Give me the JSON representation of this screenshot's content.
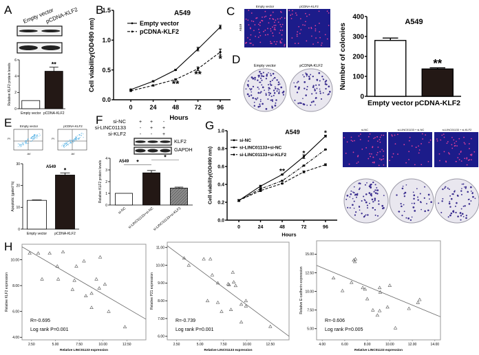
{
  "panel_labels": {
    "A": "A",
    "B": "B",
    "C": "C",
    "D": "D",
    "E": "E",
    "F": "F",
    "G": "G",
    "H": "H"
  },
  "panel_a": {
    "lanes": [
      "Empty vector",
      "pCDNA-KLF2"
    ]
  },
  "panel_c": {
    "row_label": "A549",
    "columns": [
      "Empty vector",
      "pCDNA-KLF2"
    ]
  },
  "panel_d": {
    "columns": [
      "Empty vector",
      "pCDNA-KLF2"
    ]
  },
  "panel_e": {
    "flow_plots": [
      "Empty vector",
      "pCDNA-KLF2"
    ],
    "x_axis": "AV",
    "y_axis": "PI"
  },
  "panel_f": {
    "conditions": [
      {
        "label": "si-NC",
        "signs": [
          "+",
          "+",
          "-"
        ]
      },
      {
        "label": "si-LINC01133",
        "signs": [
          "-",
          "+",
          "+"
        ]
      },
      {
        "label": "si-KLF2",
        "signs": [
          "-",
          "-",
          "+"
        ]
      }
    ],
    "blots": [
      "KLF2",
      "GAPDH"
    ]
  },
  "panel_g_images": {
    "columns": [
      "si-NC",
      "si-LINC01133 + si-NC",
      "si-LINC01133 + si-KLF2"
    ]
  },
  "colors": {
    "dark_bar": "#231815",
    "white_bar": "#ffffff",
    "hatch_bar": "#8c8c8c",
    "fluor_bg": "#1c1c8a",
    "fluor_dot": "#e0409a",
    "colony": "#3b2e8f"
  },
  "chart_data": [
    {
      "id": "a-klf2-bars",
      "type": "bar",
      "title": "",
      "ylabel": "Relative KLF2 protein levels",
      "categories": [
        "Empty vector",
        "pCDNA-KLF2"
      ],
      "values": [
        1.0,
        4.6
      ],
      "errors": [
        0,
        0.5
      ],
      "fills": [
        "white",
        "dark"
      ],
      "sig": [
        "",
        "**"
      ],
      "ylim": [
        0,
        6
      ],
      "yticks": [
        0,
        2,
        4,
        6
      ]
    },
    {
      "id": "b-viability",
      "type": "line",
      "title": "A549",
      "xlabel": "Hours",
      "ylabel": "Cell viability(OD490 nm)",
      "x": [
        0,
        24,
        48,
        72,
        96
      ],
      "xticks": [
        0,
        24,
        48,
        72,
        96
      ],
      "xlim": [
        -18.5,
        107
      ],
      "ylim": [
        0,
        1.5
      ],
      "yticks": [
        "0.0",
        "0.5",
        "1.0",
        "1.5"
      ],
      "series": [
        {
          "name": "Empty vector",
          "values": [
            0.17,
            0.31,
            0.5,
            0.85,
            1.22
          ],
          "errors": [
            0.01,
            0.01,
            0.01,
            0.03,
            0.03
          ],
          "style": "solid"
        },
        {
          "name": "pCDNA-KLF2",
          "values": [
            0.15,
            0.24,
            0.34,
            0.52,
            0.8
          ],
          "errors": [
            0.01,
            0.01,
            0.01,
            0.03,
            0.05
          ],
          "style": "dashed"
        }
      ],
      "sig": [
        {
          "x": 48,
          "y": 0.27,
          "text": "**"
        },
        {
          "x": 72,
          "y": 0.43,
          "text": "**"
        },
        {
          "x": 96,
          "y": 0.69,
          "text": "*"
        }
      ]
    },
    {
      "id": "d-colonies",
      "type": "bar",
      "title": "A549",
      "ylabel": "Number of colonies",
      "categories": [
        "Empty vector",
        "pCDNA-KLF2"
      ],
      "values": [
        280,
        137
      ],
      "errors": [
        12,
        6
      ],
      "fills": [
        "white",
        "dark"
      ],
      "sig": [
        "",
        "**"
      ],
      "ylim": [
        0,
        400
      ],
      "yticks": [
        0,
        100,
        200,
        300,
        400
      ]
    },
    {
      "id": "e-apoptosis",
      "type": "bar",
      "title": "A549",
      "ylabel": "Apoptotic (gated %)",
      "categories": [
        "Empty vector",
        "pCDNA-KLF2"
      ],
      "values": [
        13.2,
        24.8
      ],
      "errors": [
        0.2,
        1.0
      ],
      "fills": [
        "white",
        "dark"
      ],
      "sig": [
        "",
        "*"
      ],
      "ylim": [
        0,
        30
      ],
      "yticks": [
        0,
        10,
        20,
        30
      ]
    },
    {
      "id": "f-klf2-bars",
      "type": "bar",
      "title": "A549",
      "ylabel": "Relative KLF2 protein levels",
      "categories": [
        "si-NC",
        "si-LINC01133+si-NC",
        "si-LINC01133+si-KLF2"
      ],
      "values": [
        1.0,
        2.75,
        1.45
      ],
      "errors": [
        0,
        0.2,
        0.08
      ],
      "fills": [
        "white",
        "dark",
        "hatch"
      ],
      "sig": [
        "",
        "",
        ""
      ],
      "ylim": [
        0,
        4
      ],
      "yticks": [
        0,
        1,
        2,
        3,
        4
      ],
      "brackets": [
        {
          "from": 0,
          "to": 1,
          "y": 3.45,
          "text": "*"
        },
        {
          "from": 1,
          "to": 2,
          "y": 3.85,
          "text": "*"
        }
      ]
    },
    {
      "id": "g-viability",
      "type": "line",
      "title": "A549",
      "xlabel": "Hours",
      "ylabel": "Cell viability(OD490 nm)",
      "x": [
        0,
        24,
        48,
        72,
        96
      ],
      "xticks": [
        0,
        24,
        48,
        72,
        96
      ],
      "xlim": [
        -13,
        109
      ],
      "ylim": [
        0,
        1.0
      ],
      "yticks": [
        "0.0",
        "0.2",
        "0.4",
        "0.6",
        "0.8",
        "1.0"
      ],
      "series": [
        {
          "name": "si-NC",
          "values": [
            0.22,
            0.38,
            0.51,
            0.71,
            0.94
          ],
          "errors": [
            0.01,
            0.01,
            0.005,
            0.02,
            0.01
          ],
          "style": "solid"
        },
        {
          "name": "si-LINC01133+si-NC",
          "values": [
            0.22,
            0.33,
            0.41,
            0.54,
            0.62
          ],
          "errors": [
            0.01,
            0.01,
            0.005,
            0.01,
            0.01
          ],
          "style": "dashed"
        },
        {
          "name": "si-LINC01133+si-KLF2",
          "values": [
            0.22,
            0.35,
            0.44,
            0.61,
            0.79
          ],
          "errors": [
            0.01,
            0.01,
            0.005,
            0.005,
            0.005
          ],
          "style": "dashdot"
        }
      ],
      "sig": [
        {
          "x": 48,
          "y": 0.56,
          "text": "**"
        },
        {
          "x": 72,
          "y": 0.76,
          "text": "*"
        },
        {
          "x": 96,
          "y": 0.99,
          "text": "*"
        }
      ]
    },
    {
      "id": "h-klf2",
      "type": "scatter",
      "xlabel": "Relative LINC01133 expression",
      "ylabel": "Relative KLF2 expression",
      "xlim": [
        1.5,
        14.5
      ],
      "ylim": [
        3.8,
        11.2
      ],
      "xticks": [
        "2.50",
        "5.00",
        "7.50",
        "10.00",
        "12.50"
      ],
      "yticks": [
        "4.00",
        "6.00",
        "8.00",
        "10.00"
      ],
      "points": [
        [
          2.3,
          10.5
        ],
        [
          3.2,
          10.5
        ],
        [
          3.6,
          8.5
        ],
        [
          4.4,
          10.5
        ],
        [
          5.2,
          9.5
        ],
        [
          5.3,
          8.5
        ],
        [
          5.8,
          10.6
        ],
        [
          6.8,
          7.7
        ],
        [
          7.0,
          8.4
        ],
        [
          7.2,
          9.5
        ],
        [
          8.0,
          9.9
        ],
        [
          8.2,
          7.2
        ],
        [
          8.8,
          7.4
        ],
        [
          8.8,
          6.3
        ],
        [
          9.3,
          8.5
        ],
        [
          9.6,
          7.8
        ],
        [
          9.7,
          10.2
        ],
        [
          10.2,
          8.1
        ],
        [
          10.6,
          6.0
        ],
        [
          12.3,
          4.8
        ]
      ],
      "fit": [
        [
          1.5,
          11.0
        ],
        [
          14.5,
          5.4
        ]
      ],
      "r_text": "R=-0.695",
      "p_text": "Log rank P=0.001"
    },
    {
      "id": "h-p21",
      "type": "scatter",
      "xlabel": "Relative LINC01133 expression",
      "ylabel": "Relative P21 expression",
      "xlim": [
        1.5,
        14.5
      ],
      "ylim": [
        5.8,
        11.3
      ],
      "xticks": [
        "2.50",
        "5.00",
        "7.50",
        "10.00",
        "12.50"
      ],
      "yticks": [
        "6.00",
        "7.00",
        "8.00",
        "9.00",
        "10.00",
        "11.00"
      ],
      "points": [
        [
          3.3,
          10.4
        ],
        [
          3.8,
          10.0
        ],
        [
          5.4,
          10.35
        ],
        [
          6.1,
          10.35
        ],
        [
          6.3,
          9.45
        ],
        [
          5.8,
          8.0
        ],
        [
          6.9,
          9.0
        ],
        [
          6.9,
          7.9
        ],
        [
          7.3,
          7.4
        ],
        [
          8.0,
          8.95
        ],
        [
          8.1,
          8.9
        ],
        [
          8.3,
          7.5
        ],
        [
          8.5,
          9.6
        ],
        [
          8.6,
          9.05
        ],
        [
          8.8,
          8.85
        ],
        [
          9.4,
          7.8
        ],
        [
          9.4,
          6.8
        ],
        [
          9.9,
          8.0
        ],
        [
          9.9,
          7.7
        ],
        [
          12.5,
          6.55
        ]
      ],
      "fit": [
        [
          1.5,
          11.1
        ],
        [
          14.5,
          6.0
        ]
      ],
      "r_text": "R=-0.739",
      "p_text": "Log rank P=0.001"
    },
    {
      "id": "h-ecadherin",
      "type": "scatter",
      "xlabel": "Relative LINC01133 expression",
      "ylabel": "Relative E-cadherin expression",
      "xlim": [
        3.5,
        14.5
      ],
      "ylim": [
        3.5,
        16.8
      ],
      "xticks": [
        "4.00",
        "6.00",
        "8.00",
        "10.00",
        "12.00",
        "14.00"
      ],
      "yticks": [
        "5.00",
        "7.50",
        "10.00",
        "12.50",
        "15.00"
      ],
      "points": [
        [
          5.0,
          11.8
        ],
        [
          5.8,
          10.1
        ],
        [
          6.6,
          11.2
        ],
        [
          6.8,
          14.2
        ],
        [
          6.9,
          14.0
        ],
        [
          6.95,
          14.35
        ],
        [
          7.6,
          10.5
        ],
        [
          7.8,
          10.3
        ],
        [
          8.0,
          9.0
        ],
        [
          8.5,
          7.5
        ],
        [
          8.9,
          6.8
        ],
        [
          9.1,
          10.5
        ],
        [
          9.1,
          7.4
        ],
        [
          9.15,
          9.9
        ],
        [
          9.8,
          7.9
        ],
        [
          10.0,
          10.8
        ],
        [
          10.5,
          5.1
        ],
        [
          11.7,
          7.7
        ],
        [
          12.5,
          8.5
        ],
        [
          12.65,
          8.9
        ]
      ],
      "fit": [
        [
          3.5,
          13.5
        ],
        [
          14.5,
          6.6
        ]
      ],
      "r_text": "R=-0.606",
      "p_text": "Log rank P=0.005"
    }
  ]
}
